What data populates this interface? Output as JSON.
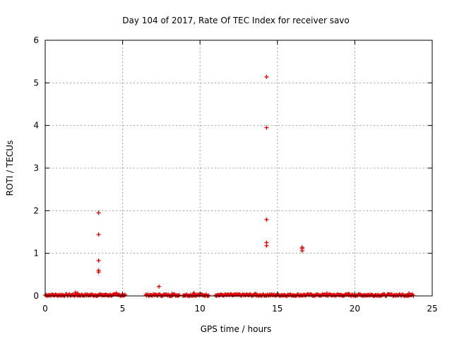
{
  "chart_data": {
    "type": "scatter",
    "title": "Day 104 of 2017, Rate Of TEC Index for receiver savo",
    "xlabel": "GPS time / hours",
    "ylabel": "ROTI / TECUs",
    "xlim": [
      0,
      25
    ],
    "ylim": [
      0,
      6
    ],
    "x_ticks": [
      0,
      5,
      10,
      15,
      20,
      25
    ],
    "y_ticks": [
      0,
      1,
      2,
      3,
      4,
      5,
      6
    ],
    "x_tick_labels": [
      "0",
      "5",
      "10",
      "15",
      "20",
      "25"
    ],
    "y_tick_labels": [
      "0",
      "1",
      "2",
      "3",
      "4",
      "5",
      "6"
    ],
    "grid": true,
    "marker": "+",
    "marker_color": "#e00000",
    "series": [
      {
        "name": "ROTI",
        "points": [
          [
            3.45,
            1.95
          ],
          [
            3.45,
            1.44
          ],
          [
            3.45,
            0.83
          ],
          [
            3.45,
            0.6
          ],
          [
            3.45,
            0.56
          ],
          [
            7.35,
            0.22
          ],
          [
            14.3,
            5.14
          ],
          [
            14.3,
            3.95
          ],
          [
            14.3,
            1.79
          ],
          [
            14.3,
            1.25
          ],
          [
            14.3,
            1.18
          ],
          [
            16.6,
            1.14
          ],
          [
            16.6,
            1.11
          ],
          [
            16.6,
            1.06
          ],
          [
            1.95,
            0.08
          ],
          [
            2.1,
            0.06
          ],
          [
            4.6,
            0.06
          ],
          [
            8.2,
            0.05
          ],
          [
            9.6,
            0.07
          ],
          [
            13.6,
            0.05
          ],
          [
            18.2,
            0.06
          ],
          [
            19.6,
            0.05
          ],
          [
            23.5,
            0.06
          ]
        ]
      }
    ],
    "baseline_segments": [
      {
        "x_start": 0.0,
        "x_end": 5.2,
        "y_min": 0.0,
        "y_max": 0.04
      },
      {
        "x_start": 6.5,
        "x_end": 8.7,
        "y_min": 0.0,
        "y_max": 0.04
      },
      {
        "x_start": 8.9,
        "x_end": 10.6,
        "y_min": 0.0,
        "y_max": 0.04
      },
      {
        "x_start": 11.0,
        "x_end": 23.8,
        "y_min": 0.0,
        "y_max": 0.04
      }
    ]
  }
}
